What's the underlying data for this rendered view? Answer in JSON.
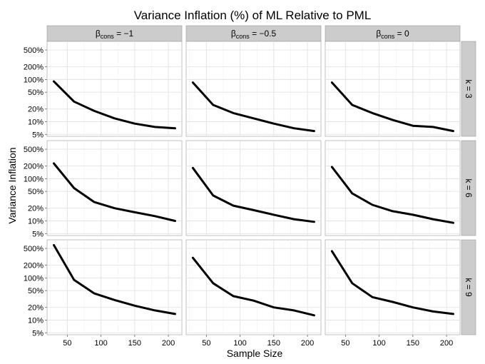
{
  "chart_data": {
    "type": "line",
    "title": "Variance Inflation (%) of ML Relative to PML",
    "xlabel": "Sample Size",
    "ylabel": "Variance Inflation",
    "y_scale": "log",
    "xlim": [
      20,
      220
    ],
    "ylim": [
      4.5,
      800
    ],
    "x_ticks": [
      50,
      100,
      150,
      200
    ],
    "y_ticks": [
      5,
      10,
      20,
      50,
      100,
      200,
      500
    ],
    "y_tick_labels": [
      "5%",
      "10%",
      "20%",
      "50%",
      "100%",
      "200%",
      "500%"
    ],
    "grid": true,
    "col_facet": {
      "labels": [
        {
          "prefix": "β",
          "sub": "cons",
          "suffix": " = −1"
        },
        {
          "prefix": "β",
          "sub": "cons",
          "suffix": " = −0.5"
        },
        {
          "prefix": "β",
          "sub": "cons",
          "suffix": " = 0"
        }
      ]
    },
    "row_facet": {
      "labels": [
        "k = 3",
        "k = 6",
        "k = 9"
      ]
    },
    "x": [
      30,
      60,
      90,
      120,
      150,
      180,
      210
    ],
    "panels": [
      [
        {
          "values": [
            90,
            30,
            18,
            12,
            9,
            7.5,
            7
          ]
        },
        {
          "values": [
            85,
            25,
            16,
            12,
            9,
            7,
            6
          ]
        },
        {
          "values": [
            85,
            25,
            16,
            11,
            8,
            7.5,
            6
          ]
        }
      ],
      [
        {
          "values": [
            230,
            60,
            28,
            20,
            16,
            13,
            10
          ]
        },
        {
          "values": [
            180,
            40,
            23,
            18,
            14,
            11,
            9.5
          ]
        },
        {
          "values": [
            190,
            45,
            24,
            17,
            14,
            11,
            9
          ]
        }
      ],
      [
        {
          "values": [
            600,
            90,
            43,
            30,
            22,
            17,
            14
          ]
        },
        {
          "values": [
            300,
            75,
            37,
            29,
            20,
            17,
            13
          ]
        },
        {
          "values": [
            430,
            75,
            35,
            27,
            20,
            16,
            14
          ]
        }
      ]
    ]
  }
}
